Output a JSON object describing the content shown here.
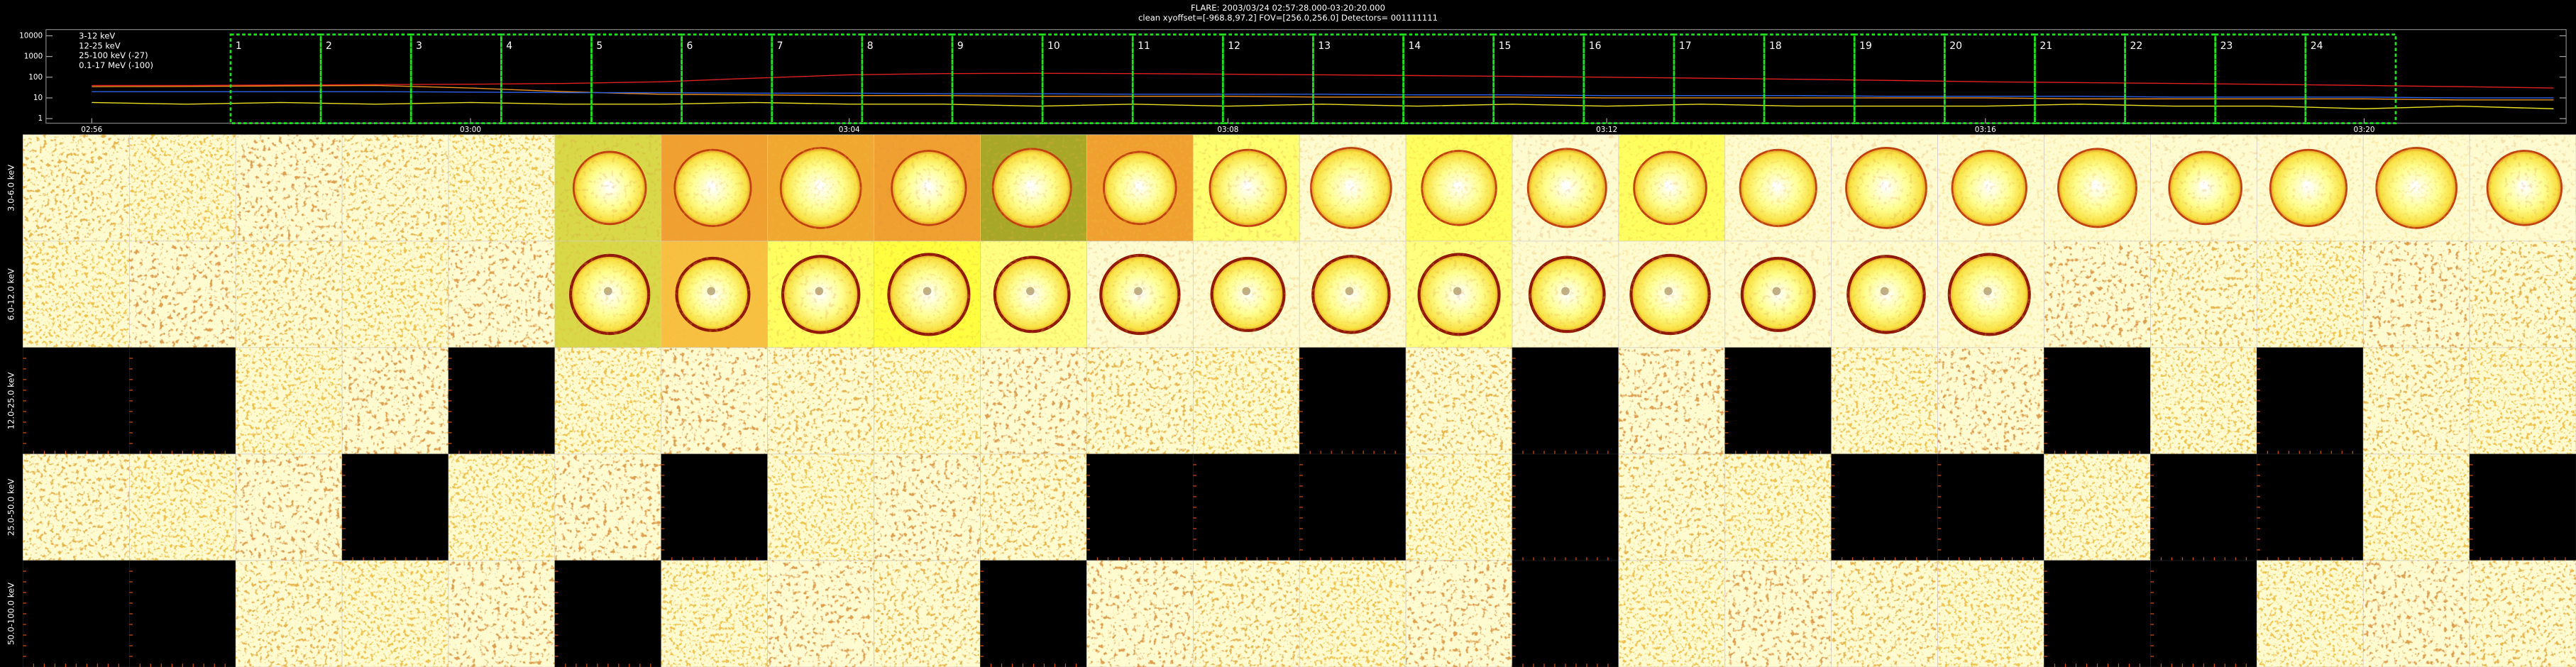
{
  "header": {
    "title": "FLARE: 2003/03/24 02:57:28.000-03:20:20.000",
    "subtitle": "clean   xyoffset=[-968.8,97.2]   FOV=[256.0,256.0]   Detectors= 001111111"
  },
  "chart_data": {
    "type": "line",
    "log_y": true,
    "x": [
      "02:56",
      "02:57",
      "02:58",
      "02:59",
      "03:00",
      "03:01",
      "03:02",
      "03:03",
      "03:04",
      "03:05",
      "03:06",
      "03:07",
      "03:08",
      "03:09",
      "03:10",
      "03:11",
      "03:12",
      "03:13",
      "03:14",
      "03:15",
      "03:16",
      "03:17",
      "03:18",
      "03:19",
      "03:20",
      "03:21",
      "03:22"
    ],
    "xlim": [
      "02:55:31",
      "03:22:08"
    ],
    "xticks": [
      "02:56",
      "03:00",
      "03:04",
      "03:08",
      "03:12",
      "03:16",
      "03:20"
    ],
    "ylim": [
      0.6,
      20000
    ],
    "yticks": [
      1,
      10,
      100,
      1000,
      10000
    ],
    "series": [
      {
        "name": "3-12 keV",
        "color": "#e02020",
        "values": [
          40,
          40,
          42,
          44,
          46,
          50,
          60,
          90,
          130,
          150,
          155,
          150,
          140,
          130,
          120,
          110,
          100,
          90,
          80,
          70,
          60,
          55,
          50,
          45,
          40,
          35,
          30
        ]
      },
      {
        "name": "12-25 keV",
        "color": "#f09020",
        "values": [
          35,
          36,
          38,
          40,
          30,
          20,
          15,
          14,
          13,
          13,
          12,
          12,
          12,
          11,
          11,
          11,
          10,
          10,
          10,
          10,
          10,
          9,
          9,
          9,
          9,
          8,
          8
        ]
      },
      {
        "name": "25-100 keV (-27)",
        "color": "#e8e020",
        "values": [
          6,
          5,
          6,
          5,
          6,
          5,
          5,
          6,
          5,
          5,
          4,
          5,
          4,
          5,
          4,
          5,
          4,
          5,
          4,
          4,
          4,
          5,
          4,
          4,
          3,
          4,
          3
        ]
      },
      {
        "name": "0.1-17 MeV (-100)",
        "color": "#3060e0",
        "values": [
          20,
          20,
          20,
          20,
          19,
          18,
          18,
          17,
          17,
          16,
          16,
          15,
          15,
          15,
          14,
          14,
          13,
          13,
          13,
          12,
          12,
          12,
          11,
          11,
          11,
          10,
          10
        ]
      }
    ],
    "intervals": {
      "range": [
        "02:57:28",
        "03:20:20"
      ],
      "color": "#20e020",
      "labels": [
        "1",
        "2",
        "3",
        "4",
        "5",
        "6",
        "7",
        "8",
        "9",
        "10",
        "11",
        "12",
        "13",
        "14",
        "15",
        "16",
        "17",
        "18",
        "19",
        "20",
        "21",
        "22",
        "23",
        "24"
      ]
    }
  },
  "grid": {
    "rows": [
      {
        "label": "3.0-6.0 keV",
        "cells": [
          "noise",
          "noise",
          "noise",
          "noise",
          "noise",
          "disk",
          "disk",
          "disk",
          "disk",
          "disk",
          "disk",
          "disk",
          "disk",
          "disk",
          "disk",
          "disk",
          "disk",
          "disk",
          "disk",
          "disk",
          "disk",
          "disk",
          "disk",
          "disk"
        ],
        "backgrounds": [
          null,
          null,
          null,
          null,
          null,
          "#d8d848",
          "#f0a030",
          "#f0a830",
          "#f0a030",
          "#a8a828",
          "#f0a030",
          "#ffff70",
          null,
          "#ffff60",
          null,
          "#ffff60",
          null,
          null,
          null,
          null,
          null,
          null,
          null,
          null
        ]
      },
      {
        "label": "6.0-12.0 keV",
        "cells": [
          "noise",
          "noise",
          "noise",
          "noise",
          "noise",
          "disk",
          "disk",
          "disk",
          "disk",
          "disk",
          "disk",
          "disk",
          "disk",
          "disk",
          "disk",
          "disk",
          "disk",
          "disk",
          "disk",
          "noise",
          "noise",
          "noise",
          "noise",
          "noise"
        ],
        "backgrounds": [
          null,
          null,
          null,
          null,
          null,
          "#d8d848",
          "#f8c040",
          "#ffff60",
          "#ffff40",
          "#ffff80",
          null,
          null,
          null,
          "#ffff80",
          null,
          null,
          null,
          null,
          null,
          null,
          null,
          null,
          null,
          null
        ]
      },
      {
        "label": "12.0-25.0 keV",
        "cells": [
          "black",
          "black",
          "noise",
          "noise",
          "black",
          "noise",
          "noise",
          "noise",
          "noise",
          "noise",
          "noise",
          "noise",
          "black",
          "noise",
          "black",
          "noise",
          "black",
          "noise",
          "noise",
          "black",
          "noise",
          "black",
          "noise",
          "noise"
        ],
        "backgrounds": [
          null,
          null,
          null,
          null,
          null,
          null,
          null,
          null,
          null,
          null,
          null,
          null,
          null,
          null,
          null,
          null,
          null,
          null,
          null,
          null,
          null,
          null,
          null,
          null
        ]
      },
      {
        "label": "25.0-50.0 keV",
        "cells": [
          "noise",
          "noise",
          "noise",
          "black",
          "noise",
          "noise",
          "black",
          "noise",
          "noise",
          "noise",
          "black",
          "black",
          "black",
          "noise",
          "black",
          "noise",
          "noise",
          "black",
          "black",
          "noise",
          "black",
          "black",
          "noise",
          "black"
        ],
        "backgrounds": [
          null,
          null,
          null,
          null,
          null,
          null,
          null,
          null,
          null,
          null,
          null,
          null,
          null,
          null,
          null,
          null,
          null,
          null,
          null,
          null,
          null,
          null,
          null,
          null
        ]
      },
      {
        "label": "50.0-100.0 keV",
        "cells": [
          "black",
          "black",
          "noise",
          "noise",
          "noise",
          "black",
          "noise",
          "noise",
          "noise",
          "black",
          "noise",
          "noise",
          "noise",
          "noise",
          "black",
          "noise",
          "noise",
          "noise",
          "noise",
          "black",
          "black",
          "noise",
          "noise",
          "noise"
        ],
        "backgrounds": [
          null,
          null,
          null,
          null,
          null,
          null,
          null,
          null,
          null,
          null,
          null,
          null,
          null,
          null,
          null,
          null,
          null,
          null,
          null,
          null,
          null,
          null,
          null,
          null
        ]
      }
    ]
  }
}
